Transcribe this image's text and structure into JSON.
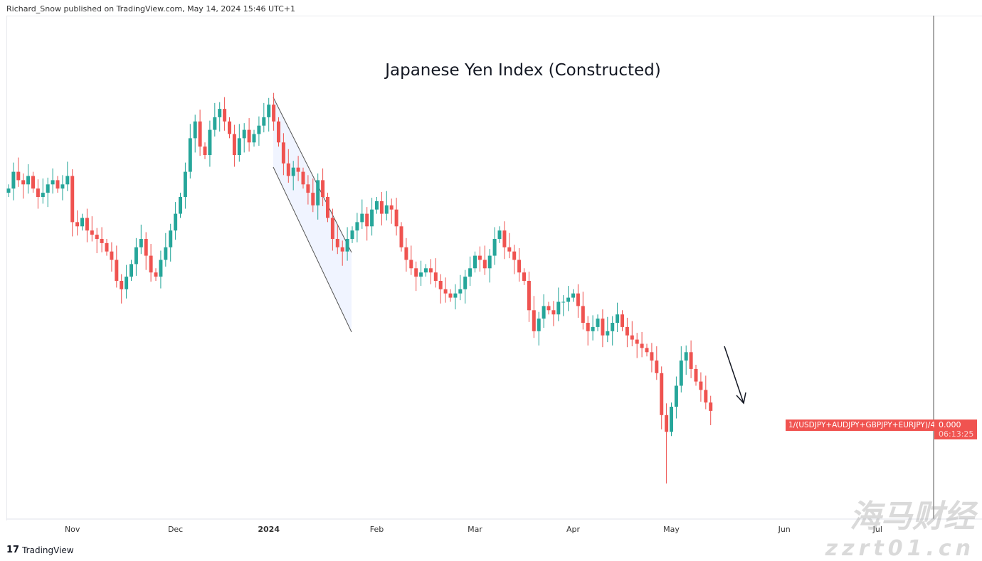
{
  "header": {
    "published": "Richard_Snow published on TradingView.com, May 14, 2024 15:46 UTC+1"
  },
  "footer": {
    "brand": "TradingView"
  },
  "watermark": {
    "cn": "海马财经",
    "url": "zzrt01.cn"
  },
  "chart_data": {
    "type": "candlestick",
    "title": "Japanese Yen Index (Constructed)",
    "symbol_label": "1/(USDJPY+AUDJPY+GBPJPY+EURJPY)/4",
    "last_price": "0.000",
    "countdown": "06:13:25",
    "x_ticks": [
      {
        "label": "Nov",
        "index": 13
      },
      {
        "label": "Dec",
        "index": 34
      },
      {
        "label": "2024",
        "index": 53,
        "bold": true
      },
      {
        "label": "Feb",
        "index": 75
      },
      {
        "label": "Mar",
        "index": 95
      },
      {
        "label": "Apr",
        "index": 115
      },
      {
        "label": "May",
        "index": 135
      },
      {
        "label": "Jun",
        "index": 158
      },
      {
        "label": "Jul",
        "index": 177
      }
    ],
    "colors": {
      "up": "#26a69a",
      "down": "#ef5350",
      "channel": "#2962ff"
    },
    "closes": [
      72,
      76,
      74,
      73,
      75,
      72,
      70,
      71,
      73,
      74,
      72,
      73,
      75,
      64,
      63,
      65,
      62,
      61,
      60,
      59,
      57,
      55,
      50,
      48,
      51,
      54,
      58,
      60,
      56,
      52,
      51,
      55,
      58,
      62,
      66,
      70,
      76,
      84,
      88,
      82,
      80,
      86,
      89,
      91,
      88,
      85,
      80,
      84,
      86,
      83,
      85,
      87,
      89,
      92,
      88,
      83,
      78,
      75,
      77,
      76,
      73,
      71,
      68,
      74,
      70,
      65,
      60,
      58,
      57,
      60,
      62,
      64,
      66,
      63,
      67,
      69,
      66,
      68,
      67,
      63,
      58,
      55,
      53,
      51,
      52,
      53,
      52,
      50,
      48,
      47,
      46,
      47,
      48,
      51,
      53,
      56,
      55,
      53,
      56,
      60,
      62,
      58,
      57,
      55,
      52,
      50,
      43,
      38,
      41,
      44,
      43,
      42,
      45,
      45,
      46,
      47,
      44,
      40,
      38,
      39,
      41,
      37,
      38,
      40,
      42,
      39,
      37,
      36,
      35,
      34,
      33,
      31,
      28,
      18,
      14,
      20,
      25,
      31,
      33,
      29,
      26,
      24,
      21,
      19
    ],
    "y_range": [
      0,
      102
    ]
  }
}
